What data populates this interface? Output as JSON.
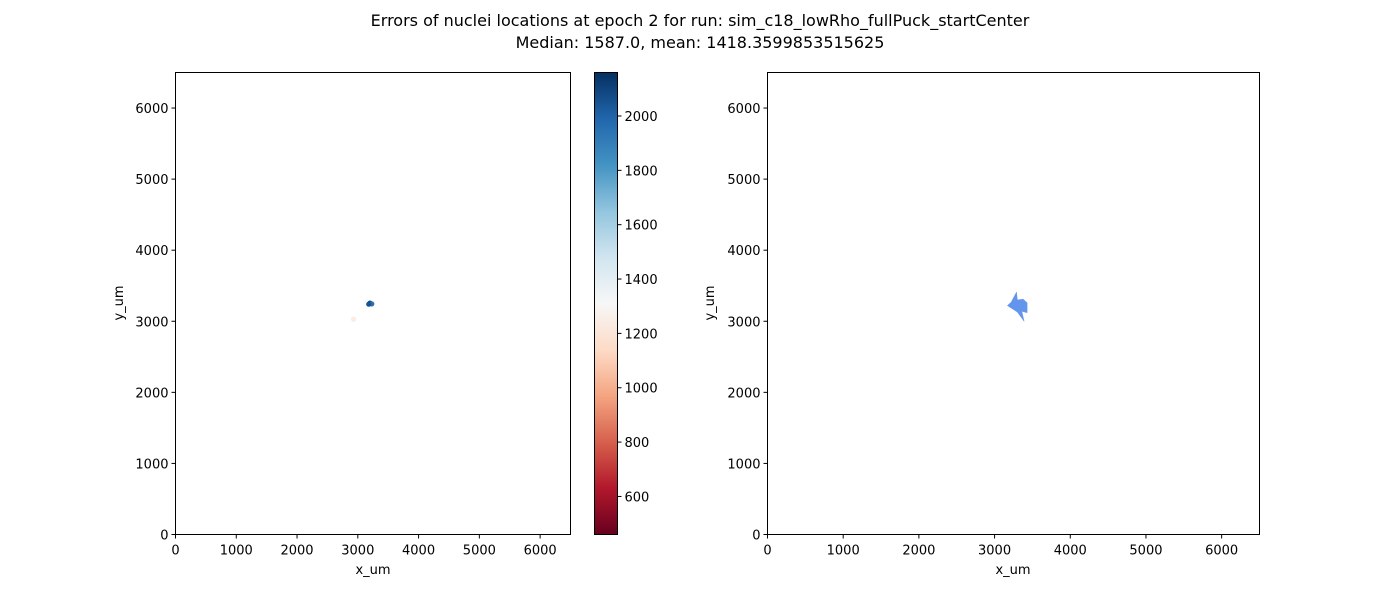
{
  "figure": {
    "title_line1": "Errors of nuclei locations at epoch 2 for run: sim_c18_lowRho_fullPuck_startCenter",
    "title_line2": "Median: 1587.0, mean: 1418.3599853515625"
  },
  "chart_data": [
    {
      "type": "scatter",
      "xlabel": "x_um",
      "ylabel": "y_um",
      "xlim": [
        0,
        6500
      ],
      "ylim": [
        0,
        6500
      ],
      "xticks": [
        0,
        1000,
        2000,
        3000,
        4000,
        5000,
        6000
      ],
      "yticks": [
        0,
        1000,
        2000,
        3000,
        4000,
        5000,
        6000
      ],
      "grid": false,
      "colormap": "RdBu",
      "colorbar": {
        "range": [
          460,
          2160
        ],
        "ticks": [
          600,
          800,
          1000,
          1200,
          1400,
          1600,
          1800,
          2000,
          2200
        ],
        "ticks_shown": [
          600,
          800,
          1000,
          1200,
          1400,
          1600,
          1800,
          2000
        ]
      },
      "points": [
        {
          "x": 3200,
          "y": 3255,
          "error": 2100
        },
        {
          "x": 3230,
          "y": 3245,
          "error": 1950
        },
        {
          "x": 3180,
          "y": 3240,
          "error": 2050
        },
        {
          "x": 2930,
          "y": 3030,
          "error": 1250
        }
      ]
    },
    {
      "type": "area",
      "xlabel": "x_um",
      "ylabel": "y_um",
      "xlim": [
        0,
        6500
      ],
      "ylim": [
        0,
        6500
      ],
      "xticks": [
        0,
        1000,
        2000,
        3000,
        4000,
        5000,
        6000
      ],
      "yticks": [
        0,
        1000,
        2000,
        3000,
        4000,
        5000,
        6000
      ],
      "grid": false,
      "fill_color": "#6495ED",
      "polygon": [
        [
          3220,
          3270
        ],
        [
          3290,
          3410
        ],
        [
          3300,
          3300
        ],
        [
          3380,
          3310
        ],
        [
          3430,
          3260
        ],
        [
          3430,
          3120
        ],
        [
          3360,
          3140
        ],
        [
          3390,
          3000
        ],
        [
          3300,
          3130
        ],
        [
          3170,
          3220
        ]
      ]
    }
  ]
}
